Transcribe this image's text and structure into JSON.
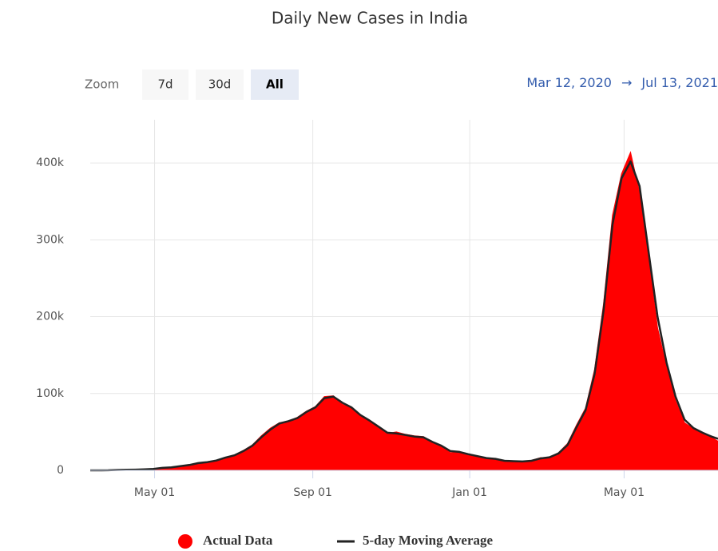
{
  "range_selector": {
    "zoom_label": "Zoom",
    "buttons": [
      "7d",
      "30d",
      "All"
    ],
    "selected": 2,
    "from": "Mar 12, 2020",
    "arrow": "→",
    "to": "Jul 13, 2021"
  },
  "chart_data": {
    "type": "area",
    "title": "Daily New Cases in India",
    "x": [
      "2020-03-12",
      "2020-03-19",
      "2020-03-26",
      "2020-04-02",
      "2020-04-09",
      "2020-04-16",
      "2020-04-23",
      "2020-04-30",
      "2020-05-07",
      "2020-05-14",
      "2020-05-21",
      "2020-05-28",
      "2020-06-04",
      "2020-06-11",
      "2020-06-18",
      "2020-06-25",
      "2020-07-02",
      "2020-07-09",
      "2020-07-16",
      "2020-07-23",
      "2020-07-30",
      "2020-08-06",
      "2020-08-13",
      "2020-08-20",
      "2020-08-27",
      "2020-09-03",
      "2020-09-10",
      "2020-09-17",
      "2020-09-24",
      "2020-10-01",
      "2020-10-08",
      "2020-10-15",
      "2020-10-22",
      "2020-10-29",
      "2020-11-05",
      "2020-11-12",
      "2020-11-19",
      "2020-11-26",
      "2020-12-03",
      "2020-12-10",
      "2020-12-17",
      "2020-12-24",
      "2020-12-31",
      "2021-01-07",
      "2021-01-14",
      "2021-01-21",
      "2021-01-28",
      "2021-02-04",
      "2021-02-11",
      "2021-02-18",
      "2021-02-25",
      "2021-03-04",
      "2021-03-11",
      "2021-03-18",
      "2021-03-25",
      "2021-04-01",
      "2021-04-08",
      "2021-04-15",
      "2021-04-22",
      "2021-04-29",
      "2021-05-06",
      "2021-05-13",
      "2021-05-20",
      "2021-05-27",
      "2021-06-03",
      "2021-06-10",
      "2021-06-17",
      "2021-06-24",
      "2021-07-01",
      "2021-07-08",
      "2021-07-13"
    ],
    "series": [
      {
        "name": "Actual Data",
        "color": "#ff0000",
        "values": [
          10,
          50,
          100,
          600,
          800,
          1000,
          1500,
          1900,
          3500,
          3900,
          5600,
          7200,
          9800,
          10900,
          13000,
          17000,
          20000,
          26000,
          33000,
          45000,
          55000,
          62000,
          64000,
          69000,
          77000,
          83000,
          96000,
          97000,
          86000,
          81000,
          70000,
          64000,
          55000,
          48000,
          50000,
          47000,
          45000,
          44000,
          36000,
          31000,
          23000,
          24000,
          20000,
          18000,
          16000,
          15000,
          11500,
          12500,
          11000,
          13000,
          16500,
          17000,
          23000,
          35000,
          59000,
          81000,
          131000,
          217000,
          332000,
          386000,
          414000,
          362000,
          276000,
          186000,
          134000,
          91000,
          62000,
          54000,
          48000,
          43000,
          38000
        ]
      },
      {
        "name": "5-day Moving Average",
        "color": "#222222",
        "values": [
          10,
          40,
          90,
          500,
          750,
          950,
          1400,
          1800,
          3200,
          3800,
          5400,
          7000,
          9500,
          10700,
          12800,
          16500,
          19500,
          25000,
          32000,
          43000,
          53000,
          61000,
          64000,
          68000,
          76000,
          82000,
          94000,
          96000,
          88000,
          82000,
          72000,
          65000,
          57000,
          49000,
          48000,
          46000,
          44000,
          43000,
          37000,
          32000,
          25000,
          24000,
          21000,
          18500,
          16000,
          15000,
          12500,
          12000,
          11500,
          12500,
          15500,
          17000,
          22000,
          33000,
          56000,
          78000,
          125000,
          208000,
          320000,
          380000,
          402000,
          370000,
          285000,
          200000,
          140000,
          96000,
          66000,
          55000,
          49000,
          44000,
          41000
        ]
      }
    ],
    "xlim": [
      "2020-03-12",
      "2021-07-13"
    ],
    "xticks": [
      {
        "value": "2020-05-01",
        "label": "May 01"
      },
      {
        "value": "2020-09-01",
        "label": "Sep 01"
      },
      {
        "value": "2021-01-01",
        "label": "Jan 01"
      },
      {
        "value": "2021-05-01",
        "label": "May 01"
      }
    ],
    "ylim": [
      0,
      450000
    ],
    "yticks": [
      0,
      {
        "value": 100000,
        "label": "100k"
      },
      {
        "value": 200000,
        "label": "200k"
      },
      {
        "value": 300000,
        "label": "300k"
      },
      {
        "value": 400000,
        "label": "400k"
      }
    ],
    "grid": true,
    "legend": "bottom"
  }
}
